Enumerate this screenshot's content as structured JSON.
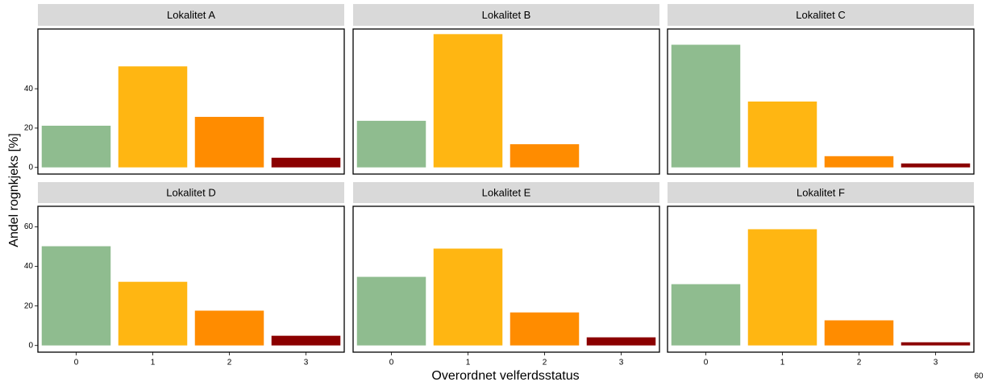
{
  "chart_data": {
    "type": "bar",
    "x_label": "Overordnet velferdsstatus",
    "y_label": "Andel rognkjeks [%]",
    "categories": [
      "0",
      "1",
      "2",
      "3"
    ],
    "colors": [
      "#8fbc8f",
      "#ffb612",
      "#ff8c00",
      "#8b0000"
    ],
    "ylim": [
      -3.4,
      70.4
    ],
    "panels": [
      {
        "title": "Lokalitet A",
        "values": [
          21.2,
          51.4,
          25.7,
          4.9
        ],
        "yticks": [
          0,
          20,
          40
        ]
      },
      {
        "title": "Lokalitet B",
        "values": [
          23.7,
          67.8,
          11.8,
          null
        ]
      },
      {
        "title": "Lokalitet C",
        "values": [
          62.4,
          33.5,
          5.7,
          2.0
        ]
      },
      {
        "title": "Lokalitet D",
        "values": [
          50.2,
          32.2,
          17.6,
          4.9
        ],
        "yticks": [
          0,
          20,
          40,
          60
        ]
      },
      {
        "title": "Lokalitet E",
        "values": [
          34.7,
          49.0,
          16.7,
          4.1
        ]
      },
      {
        "title": "Lokalitet F",
        "values": [
          31.0,
          58.8,
          12.7,
          1.6
        ]
      }
    ],
    "corner_text": "60"
  }
}
